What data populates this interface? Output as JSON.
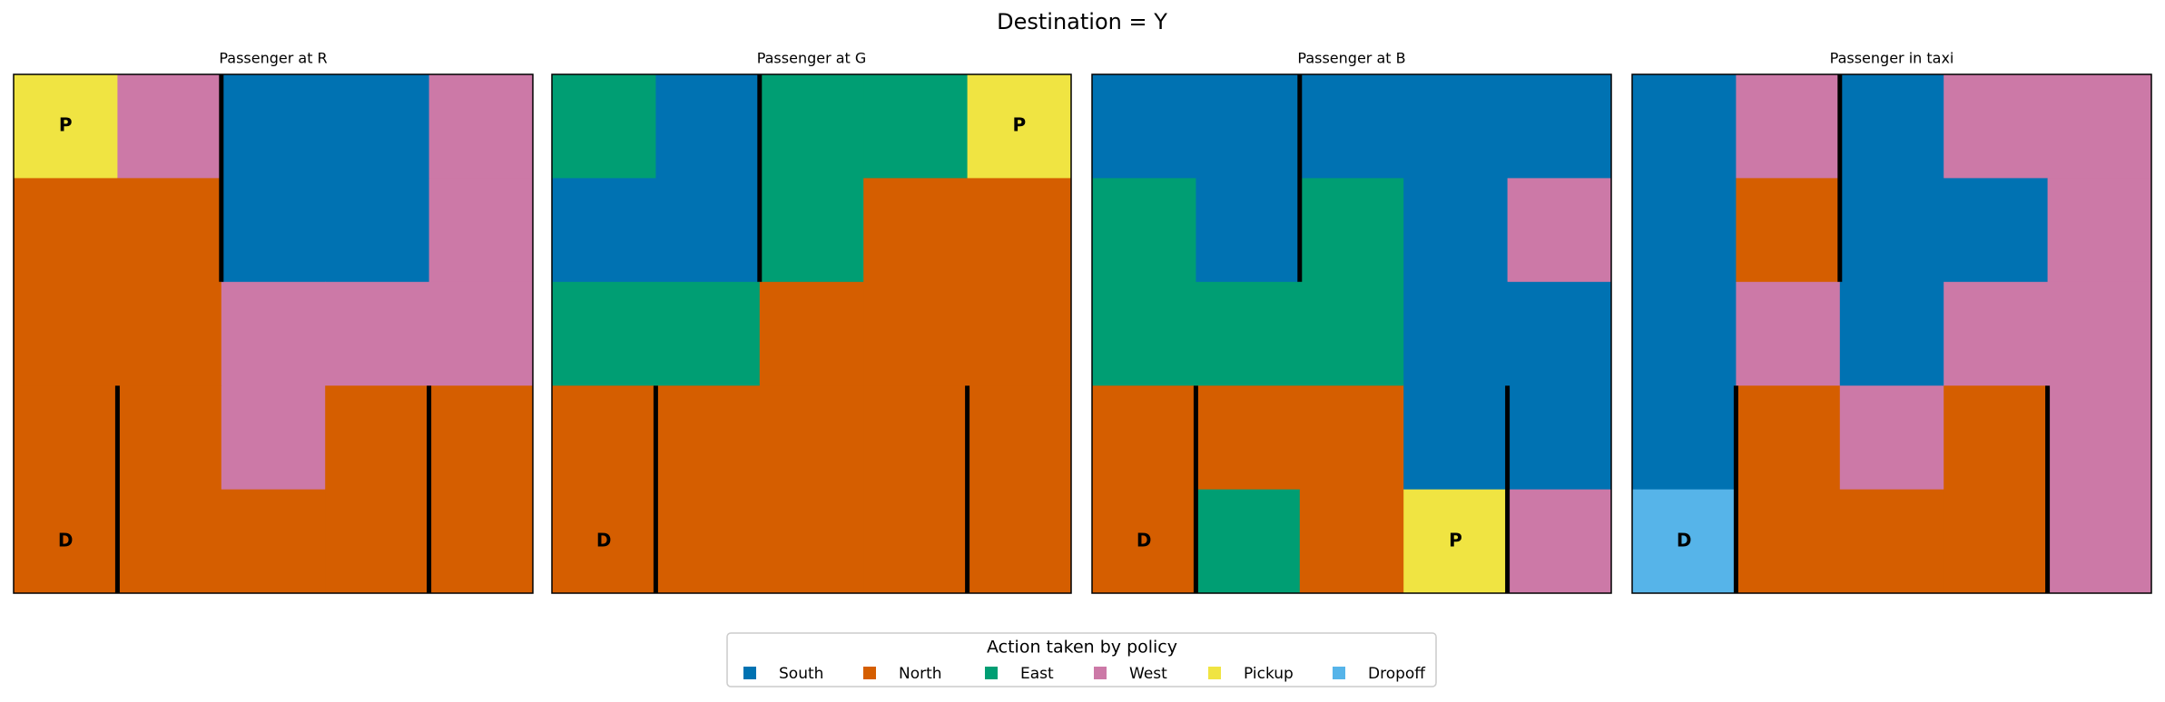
{
  "chart_data": {
    "type": "heatmap",
    "title": "Destination = Y",
    "legend": {
      "title": "Action taken by policy",
      "position": "lower center",
      "items": [
        {
          "name": "South",
          "color": "#0072b2"
        },
        {
          "name": "North",
          "color": "#d55e00"
        },
        {
          "name": "East",
          "color": "#009e73"
        },
        {
          "name": "West",
          "color": "#cc79a7"
        },
        {
          "name": "Pickup",
          "color": "#f0e442"
        },
        {
          "name": "Dropoff",
          "color": "#56b4e9"
        }
      ]
    },
    "panels": [
      {
        "title": "Passenger at R",
        "grid": [
          [
            4,
            3,
            0,
            0,
            3
          ],
          [
            1,
            1,
            0,
            0,
            3
          ],
          [
            1,
            1,
            3,
            3,
            3
          ],
          [
            1,
            1,
            3,
            1,
            1
          ],
          [
            1,
            1,
            1,
            1,
            1
          ]
        ],
        "cell_labels": [
          [
            "P",
            null,
            null,
            null,
            null
          ],
          [
            null,
            null,
            null,
            null,
            null
          ],
          [
            null,
            null,
            null,
            null,
            null
          ],
          [
            null,
            null,
            null,
            null,
            null
          ],
          [
            "D",
            null,
            null,
            null,
            null
          ]
        ]
      },
      {
        "title": "Passenger at G",
        "grid": [
          [
            2,
            0,
            2,
            2,
            4
          ],
          [
            0,
            0,
            2,
            1,
            1
          ],
          [
            2,
            2,
            1,
            1,
            1
          ],
          [
            1,
            1,
            1,
            1,
            1
          ],
          [
            1,
            1,
            1,
            1,
            1
          ]
        ],
        "cell_labels": [
          [
            null,
            null,
            null,
            null,
            "P"
          ],
          [
            null,
            null,
            null,
            null,
            null
          ],
          [
            null,
            null,
            null,
            null,
            null
          ],
          [
            null,
            null,
            null,
            null,
            null
          ],
          [
            "D",
            null,
            null,
            null,
            null
          ]
        ]
      },
      {
        "title": "Passenger at B",
        "grid": [
          [
            0,
            0,
            0,
            0,
            0
          ],
          [
            2,
            0,
            2,
            0,
            3
          ],
          [
            2,
            2,
            2,
            0,
            0
          ],
          [
            1,
            1,
            1,
            0,
            0
          ],
          [
            1,
            2,
            1,
            4,
            3
          ]
        ],
        "cell_labels": [
          [
            null,
            null,
            null,
            null,
            null
          ],
          [
            null,
            null,
            null,
            null,
            null
          ],
          [
            null,
            null,
            null,
            null,
            null
          ],
          [
            null,
            null,
            null,
            null,
            null
          ],
          [
            "D",
            null,
            null,
            "P",
            null
          ]
        ]
      },
      {
        "title": "Passenger in taxi",
        "grid": [
          [
            0,
            3,
            0,
            3,
            3
          ],
          [
            0,
            1,
            0,
            0,
            3
          ],
          [
            0,
            3,
            0,
            3,
            3
          ],
          [
            0,
            1,
            3,
            1,
            3
          ],
          [
            5,
            1,
            1,
            1,
            3
          ]
        ],
        "cell_labels": [
          [
            null,
            null,
            null,
            null,
            null
          ],
          [
            null,
            null,
            null,
            null,
            null
          ],
          [
            null,
            null,
            null,
            null,
            null
          ],
          [
            null,
            null,
            null,
            null,
            null
          ],
          [
            "D",
            null,
            null,
            null,
            null
          ]
        ]
      }
    ]
  }
}
